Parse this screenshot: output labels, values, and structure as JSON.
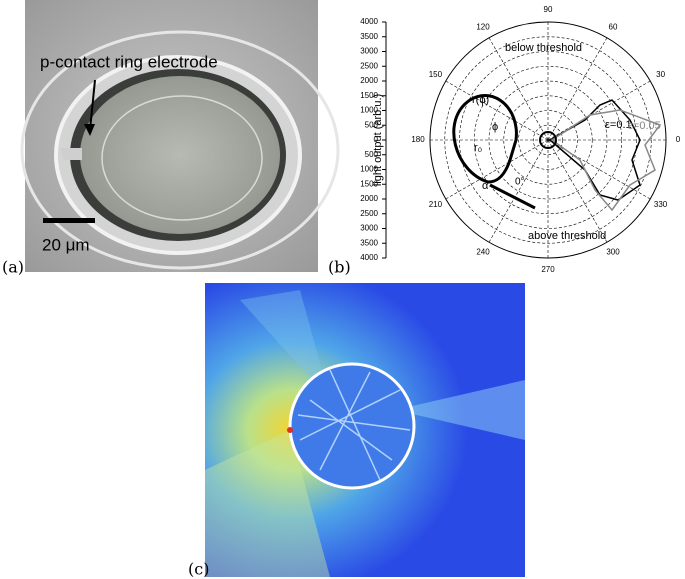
{
  "panels": [
    {
      "label": "(a)",
      "annotations": [
        "p-contact ring electrode",
        "20 μm"
      ]
    },
    {
      "label": "(b)",
      "axis_label": "light output (arb.u.)",
      "radial_ticks": [
        4000,
        3500,
        3000,
        2500,
        2000,
        1500,
        1000,
        500,
        0,
        500,
        1000,
        1500,
        2000,
        2500,
        3000,
        3500,
        4000
      ],
      "angle_ticks": [
        0,
        30,
        60,
        90,
        120,
        150,
        180,
        210,
        240,
        270,
        300,
        330
      ],
      "annotations": [
        "below threshold",
        "above threshold",
        "ε=0.1",
        "ε=0.05",
        "r(ϕ)",
        "r₀",
        "ϕ",
        "α",
        "0°"
      ]
    },
    {
      "label": "(c)"
    }
  ]
}
